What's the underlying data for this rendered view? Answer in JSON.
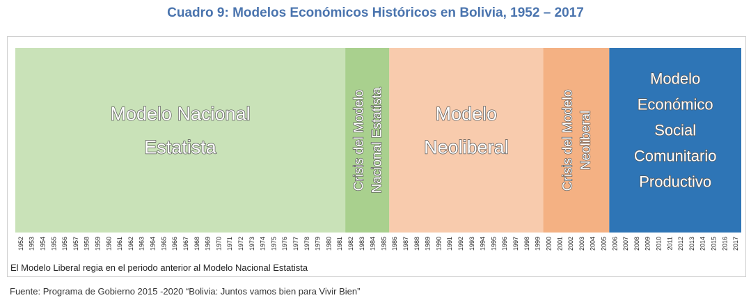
{
  "title": "Cuadro 9: Modelos Económicos Históricos en Bolivia, 1952 – 2017",
  "source_note": "Fuente: Programa de Gobierno 2015 -2020 “Bolivia: Juntos vamos bien para Vivir Bien”",
  "chart_data": {
    "type": "timeline",
    "start_year": 1952,
    "end_year": 2017,
    "years": [
      1952,
      1953,
      1954,
      1955,
      1956,
      1957,
      1958,
      1959,
      1960,
      1961,
      1962,
      1963,
      1964,
      1965,
      1966,
      1967,
      1968,
      1969,
      1970,
      1971,
      1972,
      1973,
      1974,
      1975,
      1976,
      1977,
      1978,
      1979,
      1980,
      1981,
      1982,
      1983,
      1984,
      1985,
      1986,
      1987,
      1988,
      1989,
      1990,
      1991,
      1992,
      1993,
      1994,
      1995,
      1996,
      1997,
      1998,
      1999,
      2000,
      2001,
      2002,
      2003,
      2004,
      2005,
      2006,
      2007,
      2008,
      2009,
      2010,
      2011,
      2012,
      2013,
      2014,
      2015,
      2016,
      2017
    ],
    "periods": [
      {
        "label_lines": [
          "Modelo Nacional",
          "Estatista"
        ],
        "start": 1952,
        "end": 1981,
        "color": "#c9e2b8",
        "orientation": "horizontal"
      },
      {
        "label_lines": [
          "Crisis del Modelo",
          "Nacional Estatista"
        ],
        "start": 1982,
        "end": 1985,
        "color": "#a9d08e",
        "orientation": "vertical"
      },
      {
        "label_lines": [
          "Modelo",
          "Neoliberal"
        ],
        "start": 1986,
        "end": 1999,
        "color": "#f8cbad",
        "orientation": "horizontal"
      },
      {
        "label_lines": [
          "Crisis del Modelo",
          "Neoliberal"
        ],
        "start": 2000,
        "end": 2005,
        "color": "#f4b183",
        "orientation": "vertical"
      },
      {
        "label_lines": [
          "Modelo",
          "Económico",
          "Social",
          "Comunitario",
          "Productivo"
        ],
        "start": 2006,
        "end": 2017,
        "color": "#2e75b6",
        "orientation": "horizontal"
      }
    ],
    "note": "El Modelo Liberal regia en el periodo anterior al Modelo Nacional Estatista"
  }
}
